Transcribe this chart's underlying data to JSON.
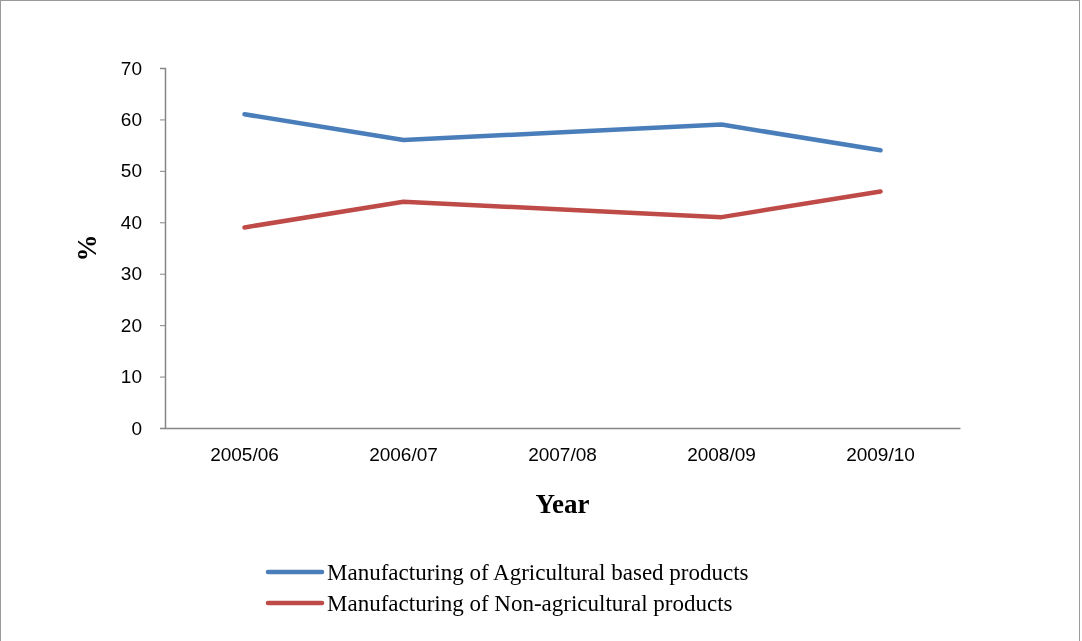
{
  "chart_data": {
    "type": "line",
    "xlabel": "Year",
    "ylabel": "%",
    "categories": [
      "2005/06",
      "2006/07",
      "2007/08",
      "2008/09",
      "2009/10"
    ],
    "series": [
      {
        "name": "Manufacturing of Agricultural based products",
        "color": "#4a7ebb",
        "values": [
          61,
          56,
          57.5,
          59,
          54
        ]
      },
      {
        "name": "Manufacturing of Non-agricultural products",
        "color": "#be4b48",
        "values": [
          39,
          44,
          42.5,
          41,
          46
        ]
      }
    ],
    "ylim": [
      0,
      70
    ],
    "yticks": [
      0,
      10,
      20,
      30,
      40,
      50,
      60,
      70
    ],
    "grid": false,
    "legend": "bottom",
    "marker": "none",
    "line_style": "solid"
  }
}
